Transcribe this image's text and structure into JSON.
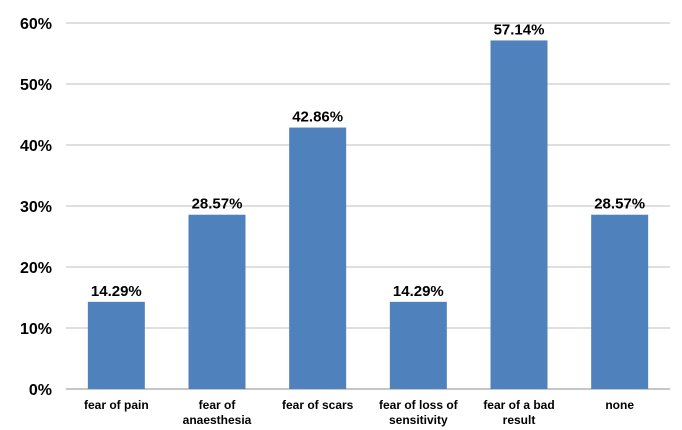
{
  "chart_data": {
    "type": "bar",
    "categories": [
      [
        "fear of pain"
      ],
      [
        "fear of",
        "anaesthesia"
      ],
      [
        "fear of scars"
      ],
      [
        "fear of loss of",
        "sensitivity"
      ],
      [
        "fear of a bad",
        "result"
      ],
      [
        "none"
      ]
    ],
    "values": [
      14.29,
      28.57,
      42.86,
      14.29,
      57.14,
      28.57
    ],
    "data_labels": [
      "14.29%",
      "28.57%",
      "42.86%",
      "14.29%",
      "57.14%",
      "28.57%"
    ],
    "ylim": [
      0,
      60
    ],
    "yticks": [
      0,
      10,
      20,
      30,
      40,
      50,
      60
    ],
    "ytick_labels": [
      "0%",
      "10%",
      "20%",
      "30%",
      "40%",
      "50%",
      "60%"
    ],
    "grid": true,
    "title": "",
    "xlabel": "",
    "ylabel": "",
    "bar_color": "#4f81bd",
    "grid_color": "#bfbfbf"
  }
}
